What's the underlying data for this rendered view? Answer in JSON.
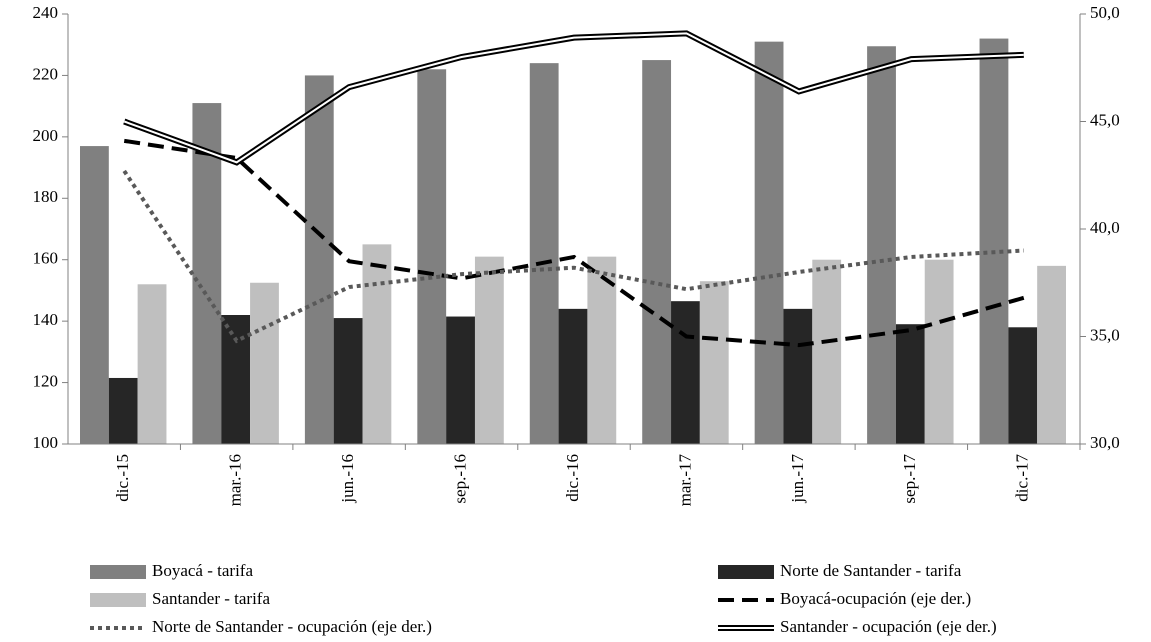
{
  "chart_data": {
    "type": "bar_line",
    "categories": [
      "dic.-15",
      "mar.-16",
      "jun.-16",
      "sep.-16",
      "dic.-16",
      "mar.-17",
      "jun.-17",
      "sep.-17",
      "dic.-17"
    ],
    "ylim": [
      100,
      240
    ],
    "yticks": [
      100,
      120,
      140,
      160,
      180,
      200,
      220,
      240
    ],
    "y2lim": [
      30,
      50
    ],
    "y2ticks": [
      {
        "value": 30,
        "label": "30,0"
      },
      {
        "value": 35,
        "label": "35,0"
      },
      {
        "value": 40,
        "label": "40,0"
      },
      {
        "value": 45,
        "label": "45,0"
      },
      {
        "value": 50,
        "label": "50,0"
      }
    ],
    "series": [
      {
        "name": "Boyacá - tarifa",
        "type": "bar",
        "color": "#808080",
        "values": [
          197,
          211,
          220,
          222,
          224,
          225,
          231,
          229.5,
          232
        ]
      },
      {
        "name": "Norte de Santander - tarifa",
        "type": "bar",
        "color": "#262626",
        "values": [
          121.5,
          142,
          141,
          141.5,
          144,
          146.5,
          144,
          139,
          138
        ]
      },
      {
        "name": "Santander - tarifa",
        "type": "bar",
        "color": "#bfbfbf",
        "values": [
          152,
          152.5,
          165,
          161,
          161,
          153,
          160,
          160,
          158
        ]
      },
      {
        "name": "Boyacá-ocupación (eje der.)",
        "type": "line",
        "axis": "y2",
        "color": "#000000",
        "line_style": "dashed",
        "values": [
          44.1,
          43.3,
          38.5,
          37.7,
          38.7,
          35.0,
          34.6,
          35.3,
          36.8
        ]
      },
      {
        "name": "Norte de Santander - ocupación (eje der.)",
        "type": "line",
        "axis": "y2",
        "color": "#595959",
        "line_style": "dotted",
        "values": [
          42.7,
          34.8,
          37.3,
          37.9,
          38.2,
          37.2,
          38.0,
          38.7,
          39.0
        ]
      },
      {
        "name": "Santander - ocupación (eje der.)",
        "type": "line",
        "axis": "y2",
        "color": "#000000",
        "line_style": "double",
        "values": [
          45.0,
          43.1,
          46.6,
          48.0,
          48.9,
          49.1,
          46.4,
          47.9,
          48.1
        ]
      }
    ]
  }
}
